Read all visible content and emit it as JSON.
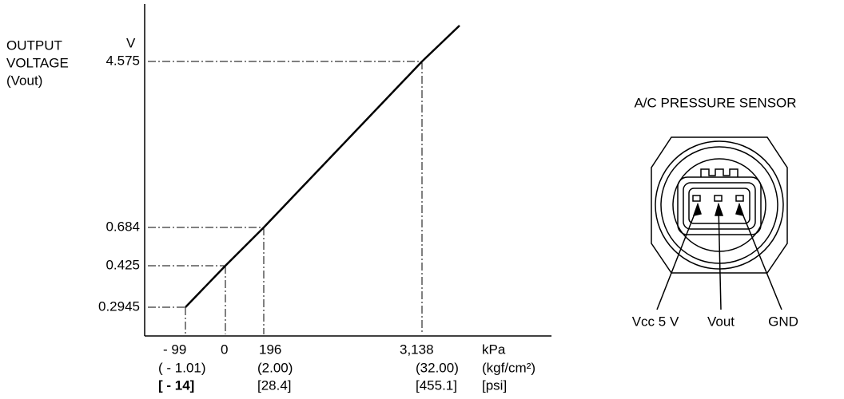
{
  "chart_data": {
    "type": "line",
    "y_title": [
      "OUTPUT",
      "VOLTAGE",
      "(Vout)"
    ],
    "y_unit": "V",
    "x": [
      -99,
      0,
      196,
      3138
    ],
    "values": [
      0.2945,
      0.425,
      0.684,
      4.575
    ],
    "yticks": [
      0.2945,
      0.425,
      0.684,
      4.575
    ],
    "xticks": [
      {
        "value": -99,
        "label": "- 99"
      },
      0,
      196,
      {
        "value": 3138,
        "label": "3,138"
      }
    ],
    "x_kgf_labels": [
      "( - 1.01)",
      null,
      "(2.00)",
      "(32.00)"
    ],
    "x_psi_labels": [
      "[ - 14]",
      null,
      "[28.4]",
      "[455.1]"
    ],
    "x_units": [
      "kPa",
      "(kgf/cm²)",
      "[psi]"
    ],
    "color": "#000000"
  },
  "sensor": {
    "title": "A/C PRESSURE SENSOR",
    "pins": [
      "Vcc 5 V",
      "Vout",
      "GND"
    ]
  }
}
